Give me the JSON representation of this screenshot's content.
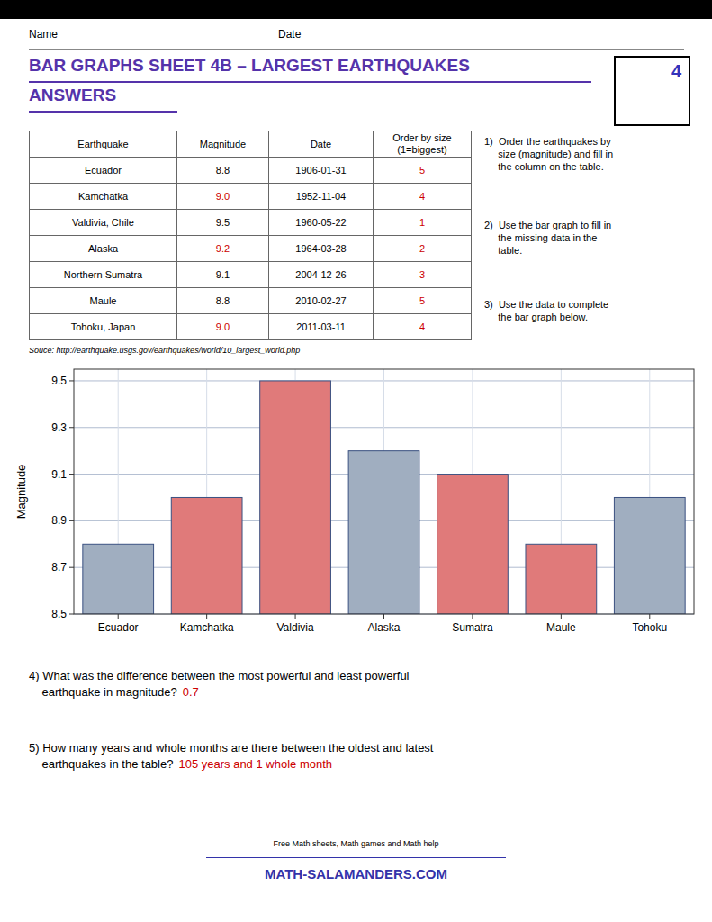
{
  "page": {
    "name_label": "Name",
    "date_label": "Date",
    "title_lines": [
      "BAR GRAPHS SHEET 4B – LARGEST EARTHQUAKES",
      "ANSWERS"
    ],
    "title_color": "#5533aa",
    "badge": {
      "text": "4",
      "color": "#3333bb"
    },
    "answer_color": "#cc0000",
    "table": {
      "headers": [
        "Earthquake",
        "Magnitude",
        "Date",
        "Order by size\n(1=biggest)"
      ],
      "rows": [
        [
          "Ecuador",
          "8.8",
          "1906-01-31",
          {
            "text": "5",
            "answer": true
          }
        ],
        [
          "Kamchatka",
          {
            "text": "9.0",
            "answer": true
          },
          "1952-11-04",
          {
            "text": "4",
            "answer": true
          }
        ],
        [
          "Valdivia, Chile",
          "9.5",
          "1960-05-22",
          {
            "text": "1",
            "answer": true
          }
        ],
        [
          "Alaska",
          {
            "text": "9.2",
            "answer": true
          },
          "1964-03-28",
          {
            "text": "2",
            "answer": true
          }
        ],
        [
          "Northern Sumatra",
          "9.1",
          "2004-12-26",
          {
            "text": "3",
            "answer": true
          }
        ],
        [
          "Maule",
          "8.8",
          "2010-02-27",
          {
            "text": "5",
            "answer": true
          }
        ],
        [
          "Tohoku, Japan",
          {
            "text": "9.0",
            "answer": true
          },
          "2011-03-11",
          {
            "text": "4",
            "answer": true
          }
        ]
      ]
    },
    "instructions": [
      "1)  Order the earthquakes by\n     size (magnitude) and fill in\n     the column on the table.",
      "2)  Use the bar graph to fill in\n     the missing data in the\n     table.",
      "3)  Use the data to complete\n     the bar graph below."
    ],
    "source": "Souce: http://earthquake.usgs.gov/earthquakes/world/10_largest_world.php",
    "questions": [
      {
        "text": "4) What was the difference between the most powerful and least powerful\n    earthquake in magnitude?",
        "answer": "0.7"
      },
      {
        "text": "5) How many years and whole months are there between the oldest and latest\n    earthquakes in the table?",
        "answer": "105 years and 1 whole month"
      }
    ],
    "footer": [
      "Free Math sheets, Math games and Math help",
      "MATH-SALAMANDERS.COM"
    ],
    "footer_color": "#3333aa"
  },
  "chart_data": {
    "type": "bar",
    "categories": [
      "Ecuador",
      "Kamchatka",
      "Valdivia",
      "Alaska",
      "Sumatra",
      "Maule",
      "Tohoku"
    ],
    "values": [
      8.8,
      9.0,
      9.5,
      9.2,
      9.1,
      8.8,
      9.0
    ],
    "colors": [
      "#a0aec0",
      "#e07a7a",
      "#e07a7a",
      "#a0aec0",
      "#e07a7a",
      "#e07a7a",
      "#a0aec0"
    ],
    "y_label": "Magnitude",
    "ylim": [
      8.5,
      9.55
    ],
    "yticks": [
      8.5,
      8.7,
      8.9,
      9.1,
      9.3,
      9.5
    ],
    "grid": true
  }
}
